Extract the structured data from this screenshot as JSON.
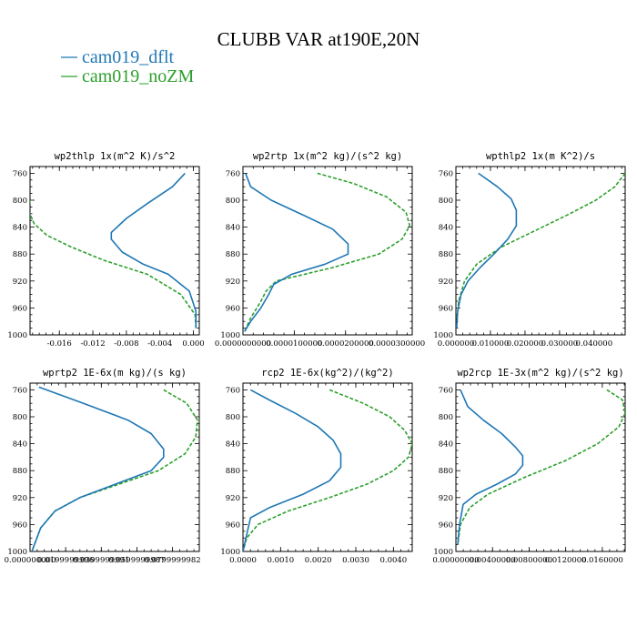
{
  "title": "CLUBB VAR at190E,20N",
  "legend": [
    {
      "label": "cam019_dflt",
      "color": "#1f77b4",
      "dash": false
    },
    {
      "label": "cam019_noZM",
      "color": "#2ca02c",
      "dash": true
    }
  ],
  "chart_data": [
    {
      "type": "line",
      "title": "wp2thlp  1x(m^2 K)/s^2",
      "ylim": [
        1000,
        750
      ],
      "yticks": [
        760,
        800,
        840,
        880,
        920,
        960,
        1000
      ],
      "ytick_labels": [
        "760",
        "800",
        "840",
        "880",
        "920",
        "960",
        "1000"
      ],
      "xlim": [
        -0.0195,
        0.0007
      ],
      "xticks": [
        -0.016,
        -0.012,
        -0.008,
        -0.004,
        0.0
      ],
      "xtick_labels": [
        "-0.016",
        "-0.012",
        "-0.008",
        "-0.004",
        "0.000"
      ],
      "series": [
        {
          "name": "cam019_dflt",
          "x": [
            -0.001,
            -0.0025,
            -0.0055,
            -0.008,
            -0.0098,
            -0.0098,
            -0.0085,
            -0.006,
            -0.003,
            -0.0005,
            0.0003,
            0.0003
          ],
          "y": [
            760,
            780,
            805,
            827,
            848,
            858,
            877,
            895,
            910,
            935,
            965,
            990
          ]
        },
        {
          "name": "cam019_noZM",
          "x": [
            -0.0195,
            -0.0197,
            -0.019,
            -0.0175,
            -0.0145,
            -0.0105,
            -0.0055,
            -0.0015,
            0.0002,
            0.0003
          ],
          "y": [
            800,
            815,
            835,
            852,
            870,
            890,
            910,
            940,
            970,
            990
          ]
        }
      ]
    },
    {
      "type": "line",
      "title": "wp2rtp  1x(m^2 kg)/(s^2 kg)",
      "ylim": [
        1000,
        750
      ],
      "yticks": [
        760,
        800,
        840,
        880,
        920,
        960,
        1000
      ],
      "ytick_labels": [
        "760",
        "800",
        "840",
        "880",
        "920",
        "960",
        "1000"
      ],
      "xlim": [
        0,
        3.3e-05
      ],
      "xticks": [
        0,
        1e-05,
        2e-05,
        3e-05
      ],
      "xtick_labels": [
        "0.0000000000",
        "0.0000100000",
        "0.0000200000",
        "0.0000300000"
      ],
      "series": [
        {
          "name": "cam019_dflt",
          "x": [
            5e-07,
            1.5e-06,
            5.5e-06,
            1.2e-05,
            1.75e-05,
            2.05e-05,
            2.05e-05,
            1.6e-05,
            9.5e-06,
            6e-06,
            5e-06,
            3.5e-06,
            1.5e-06,
            3e-07
          ],
          "y": [
            760,
            780,
            800,
            823,
            843,
            865,
            880,
            895,
            910,
            925,
            940,
            960,
            980,
            995
          ]
        },
        {
          "name": "cam019_noZM",
          "x": [
            1.45e-05,
            2.15e-05,
            2.8e-05,
            3.18e-05,
            3.25e-05,
            3.1e-05,
            2.65e-05,
            1.75e-05,
            6.5e-06,
            4.5e-06,
            3.5e-06,
            1.5e-06,
            3e-07
          ],
          "y": [
            760,
            775,
            795,
            818,
            838,
            858,
            880,
            900,
            920,
            935,
            950,
            975,
            995
          ]
        }
      ]
    },
    {
      "type": "line",
      "title": "wpthlp2  1x(m K^2)/s",
      "ylim": [
        1000,
        750
      ],
      "yticks": [
        760,
        800,
        840,
        880,
        920,
        960,
        1000
      ],
      "ytick_labels": [
        "760",
        "800",
        "840",
        "880",
        "920",
        "960",
        "1000"
      ],
      "xlim": [
        0,
        0.049
      ],
      "xticks": [
        0,
        0.01,
        0.02,
        0.03,
        0.04
      ],
      "xtick_labels": [
        "0.000000",
        "0.010000",
        "0.020000",
        "0.030000",
        "0.040000"
      ],
      "series": [
        {
          "name": "cam019_dflt",
          "x": [
            0.0065,
            0.012,
            0.016,
            0.0175,
            0.0175,
            0.015,
            0.011,
            0.007,
            0.0035,
            0.0015,
            0.0005,
            0.0002
          ],
          "y": [
            760,
            780,
            798,
            815,
            838,
            858,
            880,
            900,
            920,
            940,
            965,
            990
          ]
        },
        {
          "name": "cam019_noZM",
          "x": [
            0.049,
            0.046,
            0.0405,
            0.033,
            0.023,
            0.013,
            0.006,
            0.0025,
            0.0008,
            0.0002
          ],
          "y": [
            760,
            780,
            800,
            820,
            845,
            870,
            895,
            920,
            950,
            985
          ]
        }
      ]
    },
    {
      "type": "line",
      "title": "wprtp2  1E-6x(m kg)/(s kg)",
      "ylim": [
        1000,
        750
      ],
      "yticks": [
        760,
        800,
        840,
        880,
        920,
        960,
        1000
      ],
      "ytick_labels": [
        "760",
        "800",
        "840",
        "880",
        "920",
        "960",
        "1000"
      ],
      "xlim": [
        0,
        0.095
      ],
      "xticks": [
        0,
        0.02,
        0.04,
        0.06,
        0.08
      ],
      "xtick_labels": [
        "0.000000000",
        "0.0199999996",
        "0.0399999991",
        "0.0599999987",
        "0.0799999982"
      ],
      "series": [
        {
          "name": "cam019_dflt",
          "x": [
            0.005,
            0.03,
            0.055,
            0.068,
            0.075,
            0.075,
            0.068,
            0.048,
            0.028,
            0.014,
            0.006,
            0.001
          ],
          "y": [
            756,
            780,
            805,
            825,
            848,
            860,
            880,
            900,
            920,
            940,
            965,
            1000
          ]
        },
        {
          "name": "cam019_noZM",
          "x": [
            0.075,
            0.088,
            0.094,
            0.093,
            0.087,
            0.072,
            0.05,
            0.028,
            0.014,
            0.006,
            0.001
          ],
          "y": [
            760,
            780,
            805,
            830,
            855,
            880,
            900,
            920,
            940,
            965,
            1000
          ]
        }
      ]
    },
    {
      "type": "line",
      "title": "rcp2  1E-6x(kg^2)/(kg^2)",
      "ylim": [
        1000,
        750
      ],
      "yticks": [
        760,
        800,
        840,
        880,
        920,
        960,
        1000
      ],
      "ytick_labels": [
        "760",
        "800",
        "840",
        "880",
        "920",
        "960",
        "1000"
      ],
      "xlim": [
        0,
        0.0045
      ],
      "xticks": [
        0,
        0.001,
        0.002,
        0.003,
        0.004
      ],
      "xtick_labels": [
        "0.0000",
        "0.0010",
        "0.0020",
        "0.0030",
        "0.0040"
      ],
      "series": [
        {
          "name": "cam019_dflt",
          "x": [
            0.0002,
            0.0007,
            0.0014,
            0.002,
            0.0024,
            0.0026,
            0.0026,
            0.0023,
            0.0016,
            0.0007,
            0.0002,
            0.0001,
            0.0
          ],
          "y": [
            760,
            775,
            795,
            815,
            835,
            855,
            875,
            895,
            915,
            935,
            950,
            975,
            1000
          ]
        },
        {
          "name": "cam019_noZM",
          "x": [
            0.0023,
            0.0032,
            0.0039,
            0.0043,
            0.0045,
            0.0044,
            0.004,
            0.0033,
            0.0023,
            0.0012,
            0.0004,
            0.0001,
            0.0
          ],
          "y": [
            760,
            780,
            800,
            820,
            840,
            860,
            880,
            900,
            920,
            940,
            960,
            980,
            1000
          ]
        }
      ]
    },
    {
      "type": "line",
      "title": "wp2rcp  1E-3x(m^2 kg)/(s^2 kg)",
      "ylim": [
        1000,
        750
      ],
      "yticks": [
        760,
        800,
        840,
        880,
        920,
        960,
        1000
      ],
      "ytick_labels": [
        "760",
        "800",
        "840",
        "880",
        "920",
        "960",
        "1000"
      ],
      "xlim": [
        0,
        0.0185
      ],
      "xticks": [
        0,
        0.004,
        0.008,
        0.012,
        0.016
      ],
      "xtick_labels": [
        "0.00000000",
        "0.00400000",
        "0.00800000",
        "0.0120000",
        "0.0160000"
      ],
      "series": [
        {
          "name": "cam019_dflt",
          "x": [
            0.0005,
            0.0013,
            0.003,
            0.005,
            0.0065,
            0.0073,
            0.0073,
            0.0065,
            0.0045,
            0.0022,
            0.0008,
            0.0004,
            0.0002
          ],
          "y": [
            760,
            785,
            805,
            825,
            845,
            858,
            872,
            885,
            900,
            915,
            930,
            960,
            990
          ]
        },
        {
          "name": "cam019_noZM",
          "x": [
            0.0165,
            0.0182,
            0.0185,
            0.0178,
            0.0155,
            0.012,
            0.0075,
            0.0035,
            0.0015,
            0.0005,
            0.0002
          ],
          "y": [
            760,
            775,
            795,
            815,
            840,
            865,
            890,
            915,
            935,
            960,
            990
          ]
        }
      ]
    }
  ]
}
